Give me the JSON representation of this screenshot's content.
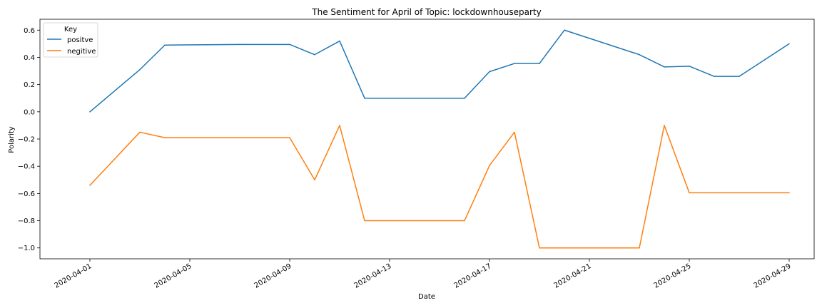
{
  "chart_data": {
    "type": "line",
    "title": "The Sentiment for April of Topic: lockdownhouseparty",
    "xlabel": "Date",
    "ylabel": "Polarity",
    "xlim": [
      "2020-03-30",
      "2020-04-30"
    ],
    "ylim": [
      -1.08,
      0.68
    ],
    "xticks": [
      "2020-04-01",
      "2020-04-05",
      "2020-04-09",
      "2020-04-13",
      "2020-04-17",
      "2020-04-21",
      "2020-04-25",
      "2020-04-29"
    ],
    "yticks": [
      -1.0,
      -0.8,
      -0.6,
      -0.4,
      -0.2,
      0.0,
      0.2,
      0.4,
      0.6
    ],
    "ytick_labels": [
      "−1.0",
      "−0.8",
      "−0.6",
      "−0.4",
      "−0.2",
      "0.0",
      "0.2",
      "0.4",
      "0.6"
    ],
    "grid": false,
    "legend": {
      "title": "Key",
      "placement": "top-left"
    },
    "series": [
      {
        "name": "positve",
        "color": "#1f77b4",
        "x": [
          "2020-04-01",
          "2020-04-03",
          "2020-04-04",
          "2020-04-07",
          "2020-04-09",
          "2020-04-10",
          "2020-04-11",
          "2020-04-12",
          "2020-04-16",
          "2020-04-17",
          "2020-04-18",
          "2020-04-19",
          "2020-04-20",
          "2020-04-23",
          "2020-04-24",
          "2020-04-25",
          "2020-04-26",
          "2020-04-27",
          "2020-04-29"
        ],
        "values": [
          0.0,
          0.31,
          0.49,
          0.495,
          0.495,
          0.42,
          0.52,
          0.1,
          0.1,
          0.295,
          0.355,
          0.355,
          0.6,
          0.42,
          0.33,
          0.335,
          0.26,
          0.26,
          0.5
        ]
      },
      {
        "name": "negitive",
        "color": "#ff7f0e",
        "x": [
          "2020-04-01",
          "2020-04-03",
          "2020-04-04",
          "2020-04-09",
          "2020-04-10",
          "2020-04-11",
          "2020-04-12",
          "2020-04-16",
          "2020-04-17",
          "2020-04-18",
          "2020-04-19",
          "2020-04-23",
          "2020-04-24",
          "2020-04-25",
          "2020-04-29"
        ],
        "values": [
          -0.54,
          -0.15,
          -0.19,
          -0.19,
          -0.5,
          -0.1,
          -0.8,
          -0.8,
          -0.395,
          -0.15,
          -1.0,
          -1.0,
          -0.1,
          -0.595,
          -0.595
        ]
      }
    ]
  }
}
